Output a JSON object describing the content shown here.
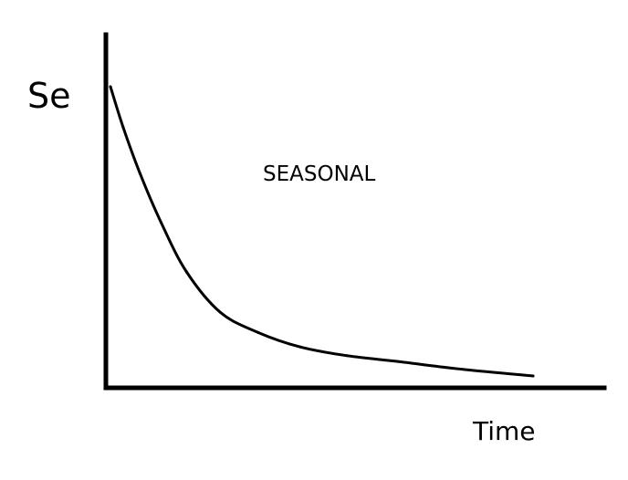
{
  "chart_data": {
    "type": "line",
    "title": "",
    "ylabel": "Se",
    "xlabel": "Time",
    "annotation": "SEASONAL",
    "grid": false,
    "legend": "none",
    "xlim": [
      0,
      1
    ],
    "ylim": [
      0,
      1
    ],
    "series": [
      {
        "values": [
          {
            "x": 0.0,
            "y": 1.0
          },
          {
            "x": 0.03,
            "y": 0.86
          },
          {
            "x": 0.07,
            "y": 0.7
          },
          {
            "x": 0.12,
            "y": 0.53
          },
          {
            "x": 0.18,
            "y": 0.36
          },
          {
            "x": 0.26,
            "y": 0.22
          },
          {
            "x": 0.35,
            "y": 0.15
          },
          {
            "x": 0.45,
            "y": 0.1
          },
          {
            "x": 0.56,
            "y": 0.07
          },
          {
            "x": 0.68,
            "y": 0.05
          },
          {
            "x": 0.82,
            "y": 0.025
          },
          {
            "x": 1.0,
            "y": 0.0
          }
        ]
      }
    ],
    "colors": {
      "axis": "#000000",
      "line": "#000000"
    }
  }
}
